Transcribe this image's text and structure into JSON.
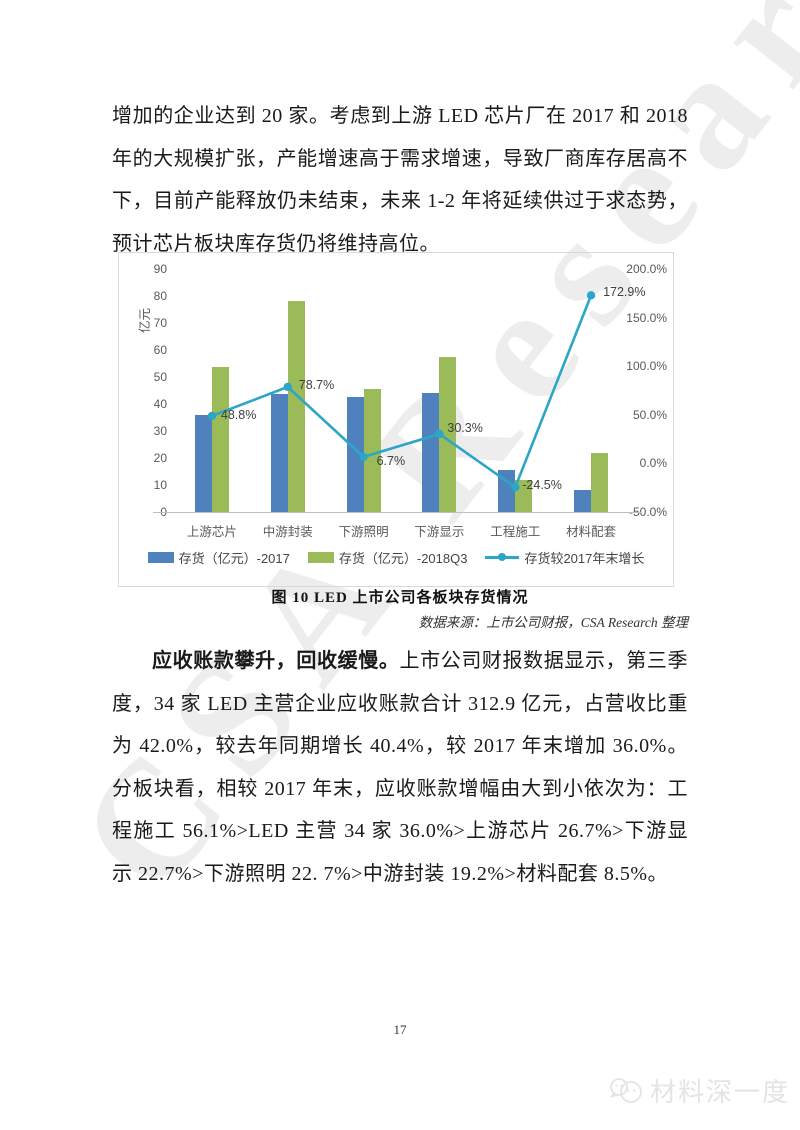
{
  "page": {
    "paragraph1": "增加的企业达到 20 家。考虑到上游 LED 芯片厂在 2017 和 2018 年的大规模扩张，产能增速高于需求增速，导致厂商库存居高不下，目前产能释放仍未结束，未来 1-2 年将延续供过于求态势，预计芯片板块库存货仍将维持高位。",
    "paragraph2_bold": "应收账款攀升，回收缓慢。",
    "paragraph2_rest": "上市公司财报数据显示，第三季度，34 家 LED 主营企业应收账款合计 312.9 亿元，占营收比重为 42.0%，较去年同期增长 40.4%，较 2017 年末增加 36.0%。分板块看，相较 2017 年末，应收账款增幅由大到小依次为：工程施工 56.1%>LED 主营 34 家 36.0%>上游芯片 26.7%>下游显示 22.7%>下游照明 22. 7%>中游封装 19.2%>材料配套 8.5%。",
    "figure_caption": "图 10  LED 上市公司各板块存货情况",
    "data_source": "数据来源：上市公司财报，CSA Research 整理",
    "page_number": "17",
    "watermark_text": "CSA Research",
    "footer_logo_text": "材料深一度"
  },
  "chart_data": {
    "type": "bar+line",
    "title": "LED 上市公司各板块存货情况",
    "categories": [
      "上游芯片",
      "中游封装",
      "下游照明",
      "下游显示",
      "工程施工",
      "材料配套"
    ],
    "series": [
      {
        "name": "存货（亿元）-2017",
        "type": "bar",
        "axis": "left",
        "color": "#4f81bd",
        "values": [
          36,
          43.7,
          42.7,
          44,
          15.5,
          8
        ]
      },
      {
        "name": "存货（亿元）-2018Q3",
        "type": "bar",
        "axis": "left",
        "color": "#9bbb59",
        "values": [
          53.6,
          78.1,
          45.6,
          57.3,
          11.7,
          21.8
        ]
      },
      {
        "name": "存货较2017年末增长",
        "type": "line",
        "axis": "right",
        "color": "#2ba6c6",
        "values": [
          48.8,
          78.7,
          6.7,
          30.3,
          -24.5,
          172.9
        ],
        "labels": [
          "48.8%",
          "78.7%",
          "6.7%",
          "30.3%",
          "-24.5%",
          "172.9%"
        ]
      }
    ],
    "left_axis": {
      "label": "亿元",
      "min": 0,
      "max": 90,
      "step": 10,
      "ticks": [
        "90",
        "80",
        "70",
        "60",
        "50",
        "40",
        "30",
        "20",
        "10",
        "0"
      ]
    },
    "right_axis": {
      "min": -50,
      "max": 200,
      "step": 50,
      "ticks": [
        "200.0%",
        "150.0%",
        "100.0%",
        "50.0%",
        "0.0%",
        "-50.0%"
      ]
    },
    "grid": false,
    "legend_position": "bottom"
  }
}
